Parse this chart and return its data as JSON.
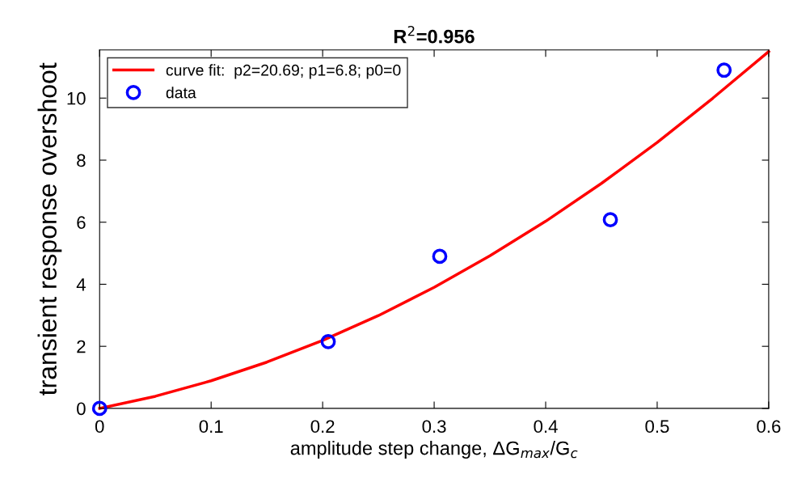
{
  "chart_data": {
    "type": "scatter",
    "title": "R$^{2}$=0.956",
    "xlabel": "amplitude step change, ΔG$_{max}$/G$_{c}$",
    "ylabel": "transient response overshoot",
    "xlim": [
      0,
      0.6
    ],
    "xticks": [
      0,
      0.1,
      0.2,
      0.3,
      0.4,
      0.5,
      0.6
    ],
    "ylim": [
      0,
      11.55
    ],
    "yticks": [
      0,
      2,
      4,
      6,
      8,
      10
    ],
    "grid": false,
    "legend": "top left",
    "series": [
      {
        "name": "curve fit:  p2=20.69; p1=6.8; p0=0",
        "type": "line",
        "color": "#ff0000",
        "marker": "none",
        "line_style": "solid",
        "x": [
          0,
          0.05,
          0.1,
          0.15,
          0.2,
          0.25,
          0.3,
          0.35,
          0.4,
          0.45,
          0.5,
          0.55,
          0.6
        ],
        "values": [
          0,
          0.39,
          0.89,
          1.49,
          2.19,
          2.99,
          3.9,
          4.92,
          6.03,
          7.25,
          8.57,
          10.0,
          11.5
        ]
      },
      {
        "name": "data",
        "color": "#0000ff",
        "marker": "circle",
        "x": [
          0,
          0.205,
          0.305,
          0.458,
          0.56
        ],
        "values": [
          0,
          2.15,
          4.9,
          6.08,
          10.9
        ]
      }
    ]
  }
}
